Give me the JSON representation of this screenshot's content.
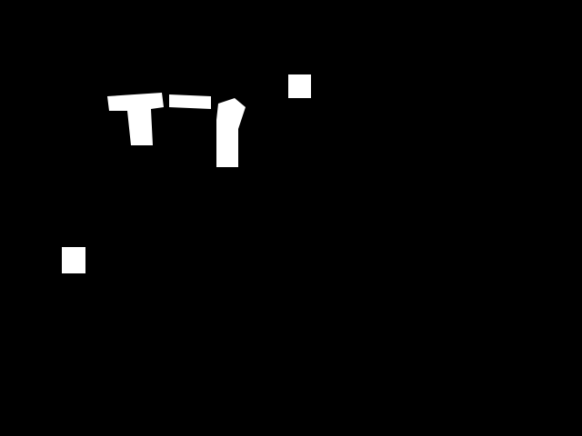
{
  "colors": {
    "background": "#000000",
    "foreground": "#ffffff"
  }
}
